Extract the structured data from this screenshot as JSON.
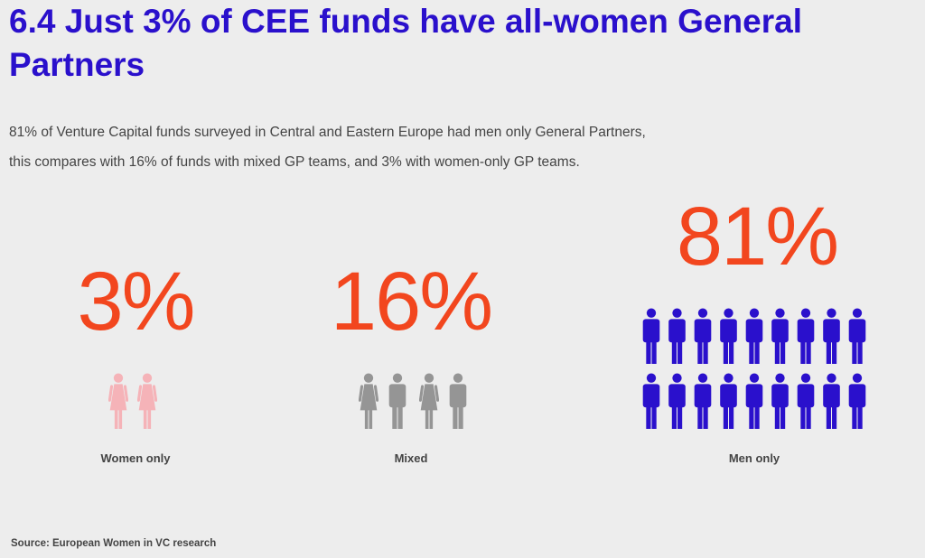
{
  "header": {
    "title": "6.4 Just 3% of CEE funds have all-women General Partners"
  },
  "description": [
    "81% of Venture Capital funds surveyed in Central and Eastern Europe had men only General Partners,",
    "this compares with 16% of funds with mixed GP teams, and 3% with women-only GP teams."
  ],
  "groups": [
    {
      "value": "3%",
      "label": "Women only"
    },
    {
      "value": "16%",
      "label": "Mixed"
    },
    {
      "value": "81%",
      "label": "Men only"
    }
  ],
  "source": "Source: European Women in VC research"
}
